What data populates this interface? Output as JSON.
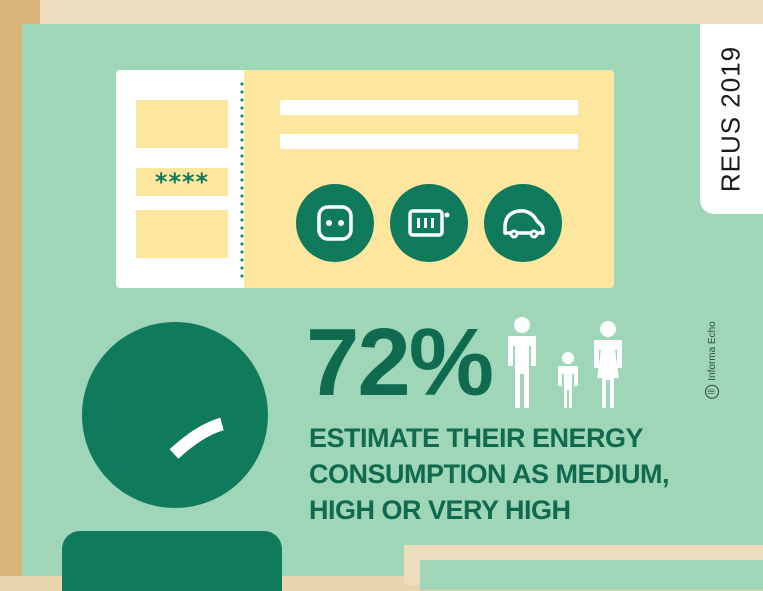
{
  "badge": {
    "text": "REUS 2019"
  },
  "credit": {
    "text": "Informa Echo",
    "icon": "informa-echo-logo-icon"
  },
  "ticket": {
    "pin_text": "****",
    "icons": [
      "power-socket-icon",
      "battery-meter-icon",
      "electric-car-icon"
    ]
  },
  "stat": {
    "number": "72%",
    "caption_lines": [
      "ESTIMATE THEIR ENERGY",
      "CONSUMPTION AS MEDIUM,",
      "HIGH OR VERY HIGH"
    ]
  },
  "colors": {
    "panel": "#a0d6b8",
    "accent_green": "#0f7a5c",
    "ticket_yellow": "#fde79e",
    "frame_tan": "#e8d5b0"
  }
}
